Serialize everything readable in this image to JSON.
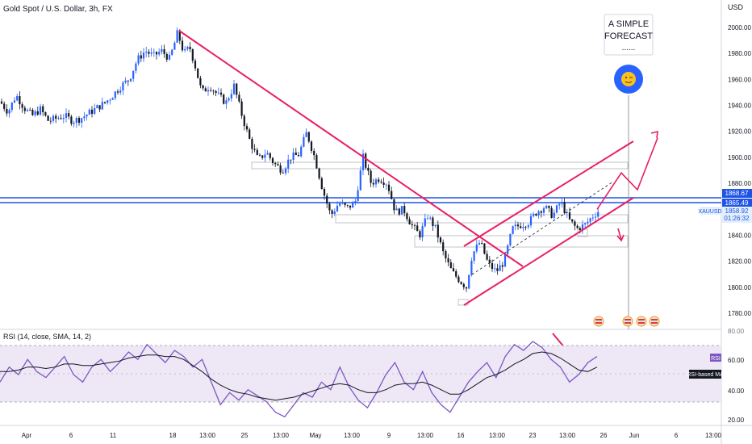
{
  "symbol_title": "Gold Spot / U.S. Dollar, 3h, FX",
  "currency_label": "USD",
  "forecast": {
    "line1": "A SIMPLE",
    "line2": "FORECAST",
    "line3": "......",
    "emoji_icon": "winking-face-icon"
  },
  "price_badges": {
    "upper": "1868.67",
    "lower": "1865.49",
    "current": "1858.92",
    "ticker": "XAUUSD",
    "countdown": "01:26:32"
  },
  "rsi": {
    "label": "RSI (14, close, SMA, 14, 2)",
    "value_badge": "RSI",
    "ma_badge": "RSI-based MA",
    "axis_top": "80.00",
    "ticks": [
      "60.00",
      "40.00",
      "20.00"
    ]
  },
  "colors": {
    "up": "#2962ff",
    "down": "#131722",
    "trend": "#e91e63",
    "hline": "#1e53e5",
    "rsi": "#7e57c2",
    "rsi_band": "#ede7f6"
  },
  "chart_data": {
    "type": "candlestick",
    "title": "Gold Spot / U.S. Dollar, 3h, FX",
    "y_unit": "USD",
    "ylim": [
      1770,
      2010
    ],
    "y_ticks": [
      "2000.00",
      "1980.00",
      "1960.00",
      "1940.00",
      "1920.00",
      "1900.00",
      "1880.00",
      "1860.00",
      "1840.00",
      "1820.00",
      "1800.00",
      "1780.00"
    ],
    "x_ticks": [
      "Apr",
      "6",
      "11",
      "18",
      "13:00",
      "25",
      "13:00",
      "May",
      "13:00",
      "9",
      "13:00",
      "16",
      "13:00",
      "23",
      "13:00",
      "26",
      "Jun",
      "6",
      "13:00"
    ],
    "close_path": [
      [
        0,
        1943
      ],
      [
        10,
        1935
      ],
      [
        20,
        1948
      ],
      [
        30,
        1938
      ],
      [
        40,
        1932
      ],
      [
        50,
        1937
      ],
      [
        60,
        1928
      ],
      [
        70,
        1930
      ],
      [
        80,
        1932
      ],
      [
        90,
        1928
      ],
      [
        100,
        1930
      ],
      [
        110,
        1934
      ],
      [
        120,
        1938
      ],
      [
        130,
        1942
      ],
      [
        140,
        1948
      ],
      [
        150,
        1955
      ],
      [
        160,
        1960
      ],
      [
        170,
        1975
      ],
      [
        180,
        1982
      ],
      [
        190,
        1978
      ],
      [
        200,
        1982
      ],
      [
        210,
        1976
      ],
      [
        215,
        1985
      ],
      [
        220,
        1996
      ],
      [
        228,
        1980
      ],
      [
        235,
        1985
      ],
      [
        242,
        1970
      ],
      [
        250,
        1950
      ],
      [
        260,
        1955
      ],
      [
        270,
        1948
      ],
      [
        280,
        1942
      ],
      [
        290,
        1955
      ],
      [
        300,
        1932
      ],
      [
        310,
        1912
      ],
      [
        320,
        1898
      ],
      [
        330,
        1904
      ],
      [
        340,
        1895
      ],
      [
        350,
        1890
      ],
      [
        360,
        1900
      ],
      [
        370,
        1902
      ],
      [
        380,
        1919
      ],
      [
        390,
        1900
      ],
      [
        400,
        1875
      ],
      [
        410,
        1855
      ],
      [
        420,
        1865
      ],
      [
        430,
        1861
      ],
      [
        440,
        1865
      ],
      [
        450,
        1900
      ],
      [
        460,
        1880
      ],
      [
        470,
        1884
      ],
      [
        480,
        1880
      ],
      [
        490,
        1858
      ],
      [
        500,
        1860
      ],
      [
        510,
        1848
      ],
      [
        520,
        1840
      ],
      [
        530,
        1855
      ],
      [
        540,
        1845
      ],
      [
        550,
        1825
      ],
      [
        560,
        1812
      ],
      [
        570,
        1805
      ],
      [
        578,
        1800
      ],
      [
        585,
        1825
      ],
      [
        595,
        1835
      ],
      [
        605,
        1818
      ],
      [
        615,
        1812
      ],
      [
        625,
        1820
      ],
      [
        635,
        1845
      ],
      [
        645,
        1848
      ],
      [
        655,
        1850
      ],
      [
        665,
        1858
      ],
      [
        675,
        1862
      ],
      [
        685,
        1855
      ],
      [
        695,
        1866
      ],
      [
        705,
        1852
      ],
      [
        715,
        1845
      ],
      [
        725,
        1848
      ],
      [
        735,
        1855
      ],
      [
        742,
        1859
      ]
    ],
    "horizontal_levels": [
      1868.67,
      1865.49
    ],
    "projection_path": [
      [
        740,
        1860
      ],
      [
        770,
        1888
      ],
      [
        790,
        1875
      ],
      [
        815,
        1915
      ]
    ],
    "rsi_series": {
      "name": "RSI",
      "ylim": [
        15,
        85
      ],
      "values": [
        45,
        55,
        50,
        60,
        52,
        48,
        55,
        62,
        50,
        45,
        55,
        60,
        52,
        58,
        65,
        60,
        70,
        64,
        58,
        66,
        62,
        55,
        60,
        45,
        30,
        38,
        33,
        40,
        36,
        32,
        25,
        22,
        30,
        38,
        35,
        45,
        40,
        55,
        42,
        33,
        28,
        38,
        50,
        58,
        45,
        40,
        52,
        38,
        30,
        25,
        35,
        45,
        52,
        58,
        48,
        62,
        70,
        66,
        72,
        68,
        60,
        55,
        45,
        50,
        58,
        62
      ]
    },
    "rsi_ma_series": {
      "name": "RSI-based MA",
      "values": [
        52,
        52,
        53,
        55,
        55,
        54,
        55,
        57,
        57,
        56,
        56,
        57,
        58,
        59,
        61,
        62,
        63,
        63,
        62,
        62,
        60,
        56,
        52,
        47,
        43,
        40,
        38,
        37,
        35,
        34,
        33,
        34,
        35,
        37,
        39,
        41,
        43,
        44,
        43,
        40,
        38,
        38,
        40,
        43,
        44,
        44,
        45,
        43,
        40,
        37,
        37,
        40,
        44,
        48,
        50,
        53,
        57,
        60,
        64,
        65,
        64,
        61,
        57,
        53,
        52,
        55
      ]
    }
  }
}
